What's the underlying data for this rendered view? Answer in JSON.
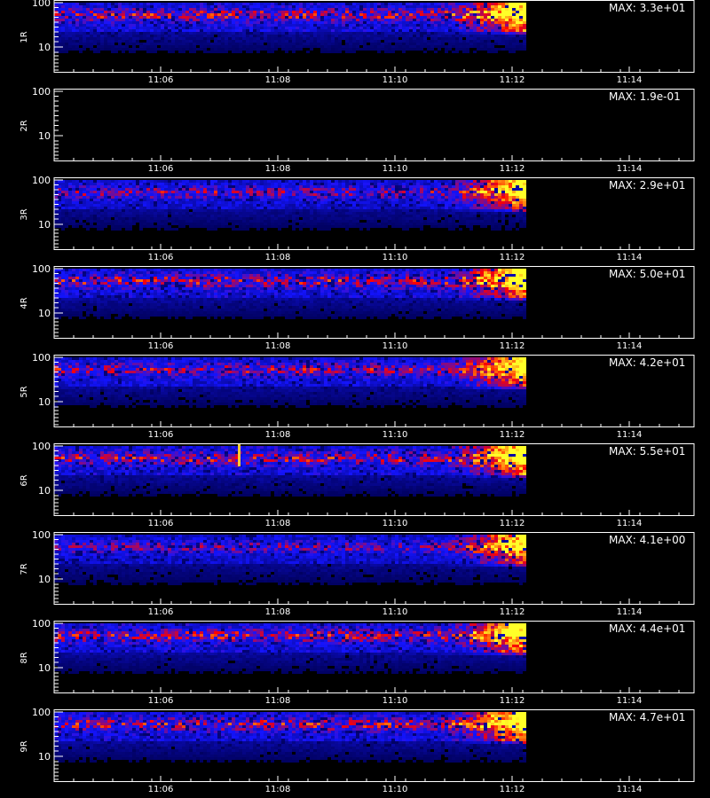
{
  "chart_data": {
    "type": "heatmap",
    "description_note": "",
    "x_ticks": [
      "11:06",
      "11:08",
      "11:10",
      "11:12",
      "11:14"
    ],
    "y_ticks": [
      "100",
      "10"
    ],
    "x_footer": "",
    "panels": [
      {
        "label": "1R",
        "max_text": "MAX: 3.3e+01",
        "intensity": 1.0,
        "empty": false,
        "spike": false
      },
      {
        "label": "2R",
        "max_text": "MAX: 1.9e-01",
        "intensity": 0.0,
        "empty": true,
        "spike": false
      },
      {
        "label": "3R",
        "max_text": "MAX: 2.9e+01",
        "intensity": 0.9,
        "empty": false,
        "spike": false
      },
      {
        "label": "4R",
        "max_text": "MAX: 5.0e+01",
        "intensity": 1.0,
        "empty": false,
        "spike": false
      },
      {
        "label": "5R",
        "max_text": "MAX: 4.2e+01",
        "intensity": 0.95,
        "empty": false,
        "spike": false
      },
      {
        "label": "6R",
        "max_text": "MAX: 5.5e+01",
        "intensity": 1.0,
        "empty": false,
        "spike": true
      },
      {
        "label": "7R",
        "max_text": "MAX: 4.1e+00",
        "intensity": 0.85,
        "empty": false,
        "spike": false
      },
      {
        "label": "8R",
        "max_text": "MAX: 4.4e+01",
        "intensity": 1.0,
        "empty": false,
        "spike": false
      },
      {
        "label": "9R",
        "max_text": "MAX: 4.7e+01",
        "intensity": 1.0,
        "empty": false,
        "spike": false
      }
    ],
    "colors": {
      "background": "#000000",
      "axis": "#ffffff",
      "low": "#1a1aff",
      "mid": "#ff2020",
      "high": "#ffff40"
    }
  }
}
